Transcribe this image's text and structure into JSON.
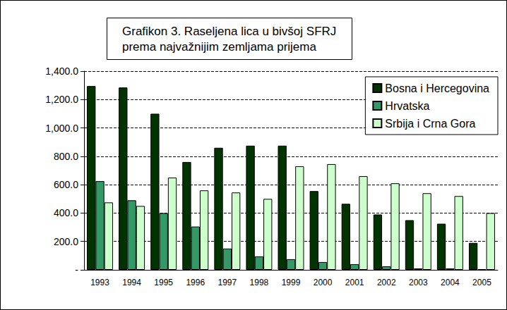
{
  "chart_data": {
    "type": "bar",
    "title": "Grafikon 3. Raseljena lica u bivšoj SFRJ\nprema najvažnijim zemljama prijema",
    "categories": [
      "1993",
      "1994",
      "1995",
      "1996",
      "1997",
      "1998",
      "1999",
      "2000",
      "2001",
      "2002",
      "2003",
      "2004",
      "2005"
    ],
    "series": [
      {
        "name": "Bosna i Hercegovina",
        "color": "#003300",
        "values": [
          1295,
          1285,
          1100,
          760,
          860,
          875,
          875,
          555,
          465,
          390,
          350,
          325,
          190
        ]
      },
      {
        "name": "Hrvatska",
        "color": "#339966",
        "values": [
          625,
          490,
          400,
          305,
          150,
          95,
          75,
          55,
          40,
          25,
          10,
          10,
          5
        ]
      },
      {
        "name": "Srbija i Crna Gora",
        "color": "#ccffcc",
        "values": [
          475,
          450,
          650,
          560,
          545,
          500,
          730,
          745,
          660,
          610,
          540,
          520,
          400
        ]
      }
    ],
    "ylim": [
      0,
      1400
    ],
    "yticks": [
      {
        "value": 0,
        "label": "-"
      },
      {
        "value": 200,
        "label": "200.0"
      },
      {
        "value": 400,
        "label": "400.0"
      },
      {
        "value": 600,
        "label": "600.0"
      },
      {
        "value": 800,
        "label": "800.0"
      },
      {
        "value": 1000,
        "label": "1,000.0"
      },
      {
        "value": 1200,
        "label": "1,200.0"
      },
      {
        "value": 1400,
        "label": "1,400.0"
      }
    ],
    "grid": true,
    "legend": "upper right"
  }
}
